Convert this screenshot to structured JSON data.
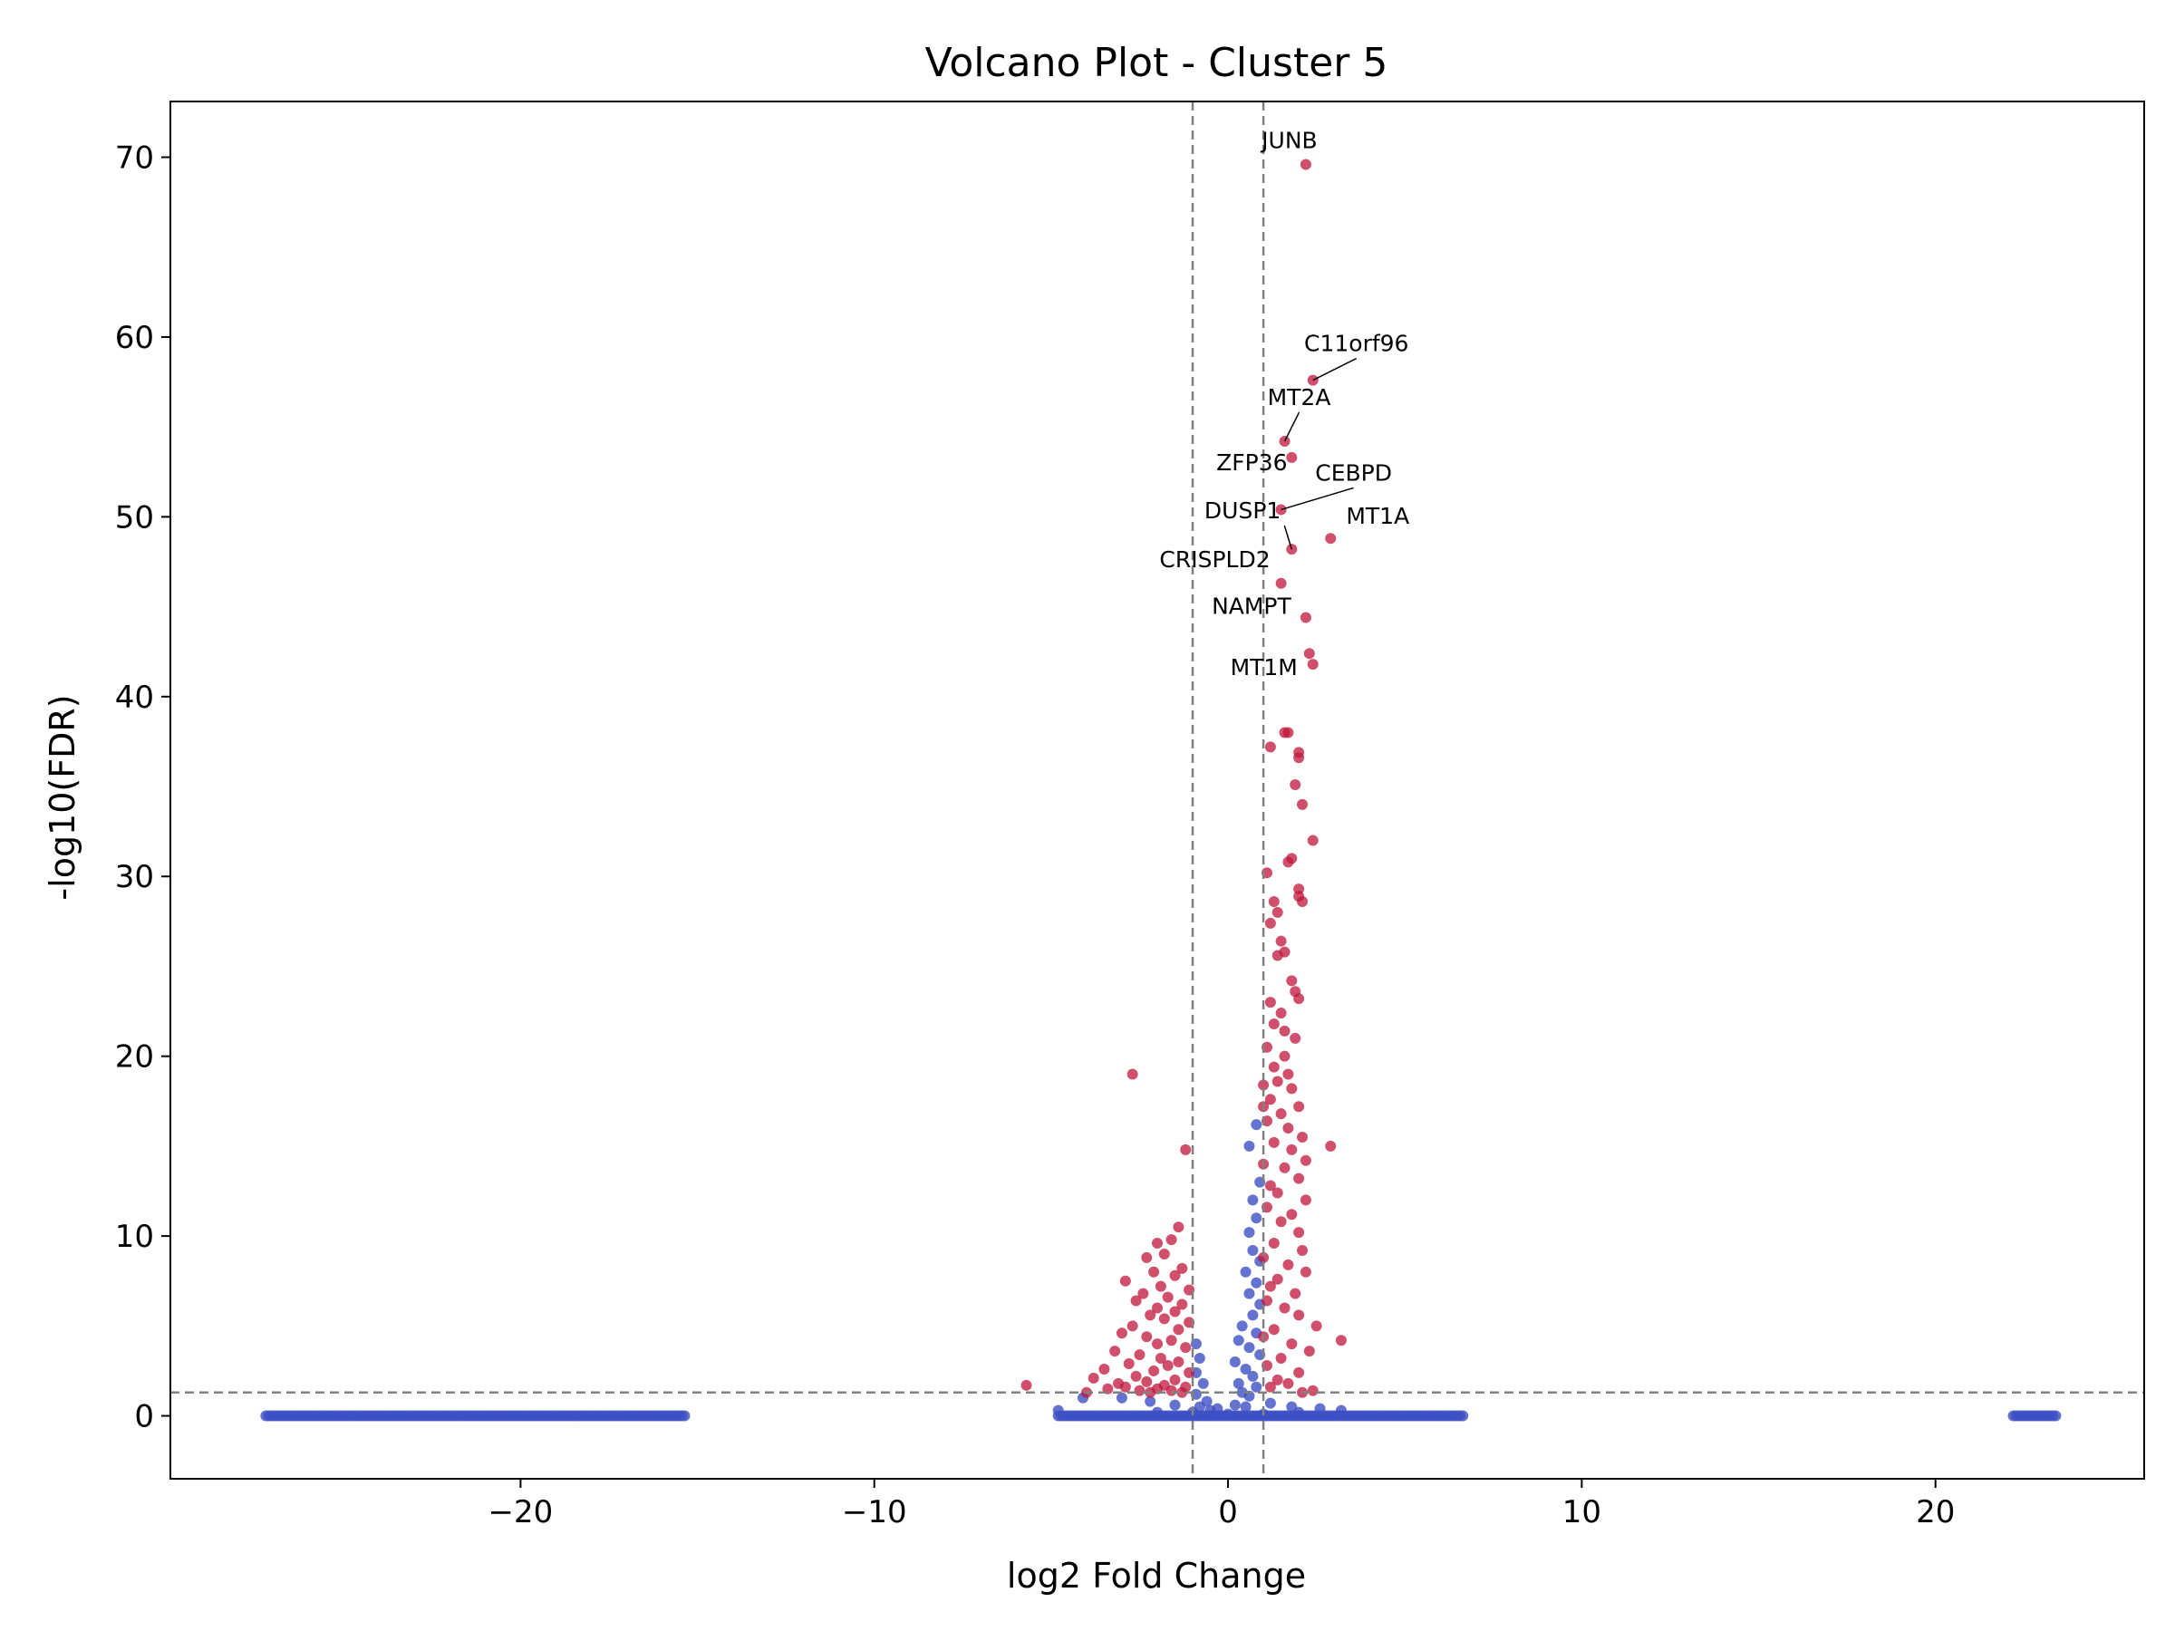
{
  "chart_data": {
    "type": "scatter",
    "title": "Volcano Plot - Cluster 5",
    "xlabel": "log2 Fold Change",
    "ylabel": "-log10(FDR)",
    "xlim": [
      -29.9,
      25.9
    ],
    "ylim": [
      -3.5,
      73.1
    ],
    "xticks": [
      -20,
      -10,
      0,
      10,
      20
    ],
    "xtick_labels": [
      "−20",
      "−10",
      "0",
      "10",
      "20"
    ],
    "yticks": [
      0,
      10,
      20,
      30,
      40,
      50,
      60,
      70
    ],
    "ytick_labels": [
      "0",
      "10",
      "20",
      "30",
      "40",
      "50",
      "60",
      "70"
    ],
    "grid": false,
    "legend": "none",
    "thresholds": {
      "log2fc": [
        -1,
        1
      ],
      "neg_log10_fdr": 1.3
    },
    "colors": {
      "significant": "#c0163b",
      "not_significant": "#3d50c3",
      "threshold_line": "#808080"
    },
    "labeled_genes": [
      {
        "gene": "JUNB",
        "x": 2.2,
        "y": 69.6
      },
      {
        "gene": "C11orf96",
        "x": 2.4,
        "y": 57.6
      },
      {
        "gene": "MT2A",
        "x": 1.6,
        "y": 54.2
      },
      {
        "gene": "ZFP36",
        "x": 1.8,
        "y": 53.3
      },
      {
        "gene": "CEBPD",
        "x": 1.5,
        "y": 50.4
      },
      {
        "gene": "DUSP1",
        "x": 1.8,
        "y": 48.2
      },
      {
        "gene": "MT1A",
        "x": 2.9,
        "y": 48.8
      },
      {
        "gene": "CRISPLD2",
        "x": 1.5,
        "y": 46.3
      },
      {
        "gene": "NAMPT",
        "x": 2.2,
        "y": 44.4
      },
      {
        "gene": "MT1M",
        "x": 2.4,
        "y": 41.8
      }
    ],
    "series": [
      {
        "name": "",
        "significant": true,
        "points": [
          [
            2.2,
            69.6
          ],
          [
            2.4,
            57.6
          ],
          [
            1.6,
            54.2
          ],
          [
            1.8,
            53.3
          ],
          [
            1.5,
            50.4
          ],
          [
            2.9,
            48.8
          ],
          [
            1.8,
            48.2
          ],
          [
            1.5,
            46.3
          ],
          [
            2.2,
            44.4
          ],
          [
            2.3,
            42.4
          ],
          [
            2.4,
            41.8
          ],
          [
            1.6,
            38.0
          ],
          [
            1.7,
            38.0
          ],
          [
            1.2,
            37.2
          ],
          [
            2.0,
            36.9
          ],
          [
            2.0,
            36.6
          ],
          [
            1.9,
            35.1
          ],
          [
            2.1,
            34.0
          ],
          [
            2.4,
            32.0
          ],
          [
            1.8,
            31.0
          ],
          [
            1.7,
            30.8
          ],
          [
            1.1,
            30.2
          ],
          [
            2.0,
            29.3
          ],
          [
            2.0,
            28.9
          ],
          [
            2.1,
            28.6
          ],
          [
            1.3,
            28.6
          ],
          [
            1.4,
            28.0
          ],
          [
            1.2,
            27.4
          ],
          [
            1.5,
            26.4
          ],
          [
            1.6,
            25.8
          ],
          [
            1.4,
            25.6
          ],
          [
            1.8,
            24.2
          ],
          [
            1.9,
            23.6
          ],
          [
            2.0,
            23.2
          ],
          [
            1.2,
            23.0
          ],
          [
            1.5,
            22.4
          ],
          [
            1.3,
            21.8
          ],
          [
            1.6,
            21.4
          ],
          [
            1.9,
            21.0
          ],
          [
            1.1,
            20.5
          ],
          [
            1.6,
            20.0
          ],
          [
            1.3,
            19.4
          ],
          [
            1.7,
            19.0
          ],
          [
            1.0,
            18.4
          ],
          [
            1.4,
            18.6
          ],
          [
            1.8,
            18.2
          ],
          [
            1.2,
            17.6
          ],
          [
            2.0,
            17.2
          ],
          [
            1.0,
            17.2
          ],
          [
            1.5,
            16.8
          ],
          [
            1.1,
            16.4
          ],
          [
            1.7,
            16.0
          ],
          [
            2.1,
            15.5
          ],
          [
            2.9,
            15.0
          ],
          [
            1.3,
            15.2
          ],
          [
            1.8,
            14.8
          ],
          [
            2.2,
            14.2
          ],
          [
            1.0,
            14.0
          ],
          [
            1.6,
            13.8
          ],
          [
            2.0,
            13.2
          ],
          [
            1.2,
            12.8
          ],
          [
            1.4,
            12.4
          ],
          [
            2.2,
            12.0
          ],
          [
            1.1,
            11.6
          ],
          [
            1.8,
            11.2
          ],
          [
            1.5,
            10.8
          ],
          [
            2.0,
            10.2
          ],
          [
            1.3,
            9.6
          ],
          [
            2.1,
            9.2
          ],
          [
            1.0,
            8.8
          ],
          [
            1.7,
            8.4
          ],
          [
            2.2,
            8.0
          ],
          [
            1.4,
            7.6
          ],
          [
            1.2,
            7.2
          ],
          [
            1.9,
            6.8
          ],
          [
            1.1,
            6.4
          ],
          [
            1.6,
            6.0
          ],
          [
            2.0,
            5.6
          ],
          [
            2.5,
            5.0
          ],
          [
            3.2,
            4.2
          ],
          [
            1.3,
            4.8
          ],
          [
            1.0,
            4.4
          ],
          [
            1.8,
            4.0
          ],
          [
            2.3,
            3.6
          ],
          [
            1.5,
            3.2
          ],
          [
            1.1,
            2.8
          ],
          [
            2.0,
            2.4
          ],
          [
            1.4,
            2.0
          ],
          [
            1.7,
            1.8
          ],
          [
            1.2,
            1.6
          ],
          [
            2.4,
            1.4
          ],
          [
            2.1,
            1.3
          ],
          [
            -2.7,
            19.0
          ],
          [
            -1.2,
            14.8
          ],
          [
            -1.4,
            10.5
          ],
          [
            -1.6,
            9.8
          ],
          [
            -2.0,
            9.6
          ],
          [
            -1.8,
            9.0
          ],
          [
            -2.3,
            8.8
          ],
          [
            -1.3,
            8.2
          ],
          [
            -2.1,
            8.0
          ],
          [
            -1.5,
            7.8
          ],
          [
            -2.9,
            7.5
          ],
          [
            -1.9,
            7.2
          ],
          [
            -1.1,
            7.0
          ],
          [
            -2.4,
            6.8
          ],
          [
            -1.7,
            6.6
          ],
          [
            -2.6,
            6.4
          ],
          [
            -1.3,
            6.2
          ],
          [
            -2.0,
            6.0
          ],
          [
            -1.5,
            5.8
          ],
          [
            -2.2,
            5.6
          ],
          [
            -1.8,
            5.4
          ],
          [
            -1.1,
            5.2
          ],
          [
            -2.7,
            5.0
          ],
          [
            -1.4,
            4.8
          ],
          [
            -3.0,
            4.6
          ],
          [
            -2.3,
            4.4
          ],
          [
            -1.6,
            4.2
          ],
          [
            -2.0,
            4.0
          ],
          [
            -1.2,
            3.8
          ],
          [
            -3.2,
            3.6
          ],
          [
            -2.5,
            3.4
          ],
          [
            -1.9,
            3.2
          ],
          [
            -1.4,
            3.0
          ],
          [
            -2.8,
            2.9
          ],
          [
            -1.7,
            2.8
          ],
          [
            -3.5,
            2.6
          ],
          [
            -2.1,
            2.5
          ],
          [
            -1.1,
            2.4
          ],
          [
            -2.6,
            2.2
          ],
          [
            -3.8,
            2.1
          ],
          [
            -1.5,
            2.0
          ],
          [
            -2.3,
            1.9
          ],
          [
            -3.1,
            1.8
          ],
          [
            -1.8,
            1.7
          ],
          [
            -5.7,
            1.7
          ],
          [
            -2.9,
            1.6
          ],
          [
            -1.2,
            1.6
          ],
          [
            -2.0,
            1.5
          ],
          [
            -3.4,
            1.5
          ],
          [
            -1.6,
            1.4
          ],
          [
            -2.5,
            1.4
          ],
          [
            -4.0,
            1.3
          ],
          [
            -1.3,
            1.3
          ],
          [
            -2.2,
            1.3
          ]
        ]
      },
      {
        "name": "",
        "significant": false,
        "points": [
          [
            0.6,
            15.0
          ],
          [
            0.8,
            16.2
          ],
          [
            0.9,
            13.0
          ],
          [
            0.7,
            12.0
          ],
          [
            0.8,
            11.0
          ],
          [
            0.6,
            10.2
          ],
          [
            0.7,
            9.2
          ],
          [
            0.9,
            8.6
          ],
          [
            0.5,
            8.0
          ],
          [
            0.8,
            7.4
          ],
          [
            0.6,
            6.8
          ],
          [
            0.9,
            6.2
          ],
          [
            0.7,
            5.6
          ],
          [
            0.4,
            5.0
          ],
          [
            0.8,
            4.6
          ],
          [
            0.3,
            4.2
          ],
          [
            0.6,
            3.8
          ],
          [
            0.9,
            3.4
          ],
          [
            0.2,
            3.0
          ],
          [
            0.5,
            2.6
          ],
          [
            0.7,
            2.2
          ],
          [
            0.3,
            1.8
          ],
          [
            0.8,
            1.6
          ],
          [
            0.4,
            1.3
          ],
          [
            0.6,
            1.1
          ],
          [
            -0.9,
            4.0
          ],
          [
            -0.8,
            3.2
          ],
          [
            -0.9,
            2.4
          ],
          [
            -0.7,
            1.8
          ],
          [
            -0.9,
            1.2
          ],
          [
            -0.6,
            0.8
          ],
          [
            -0.8,
            0.5
          ],
          [
            -0.5,
            0.3
          ],
          [
            -3.0,
            1.0
          ],
          [
            -4.1,
            1.0
          ],
          [
            -4.8,
            0.3
          ],
          [
            -2.2,
            0.8
          ],
          [
            -1.5,
            0.6
          ],
          [
            -0.3,
            0.4
          ],
          [
            0.2,
            0.6
          ],
          [
            0.5,
            0.5
          ],
          [
            1.2,
            0.7
          ],
          [
            1.8,
            0.5
          ],
          [
            2.6,
            0.4
          ],
          [
            3.2,
            0.3
          ],
          [
            -1.0,
            0.2
          ],
          [
            0.0,
            0.1
          ],
          [
            1.0,
            0.1
          ],
          [
            2.0,
            0.2
          ],
          [
            -2.0,
            0.2
          ]
        ],
        "segments_at_zero": [
          [
            -27.2,
            -15.3
          ],
          [
            -4.8,
            6.7
          ],
          [
            22.2,
            23.4
          ]
        ]
      }
    ]
  }
}
